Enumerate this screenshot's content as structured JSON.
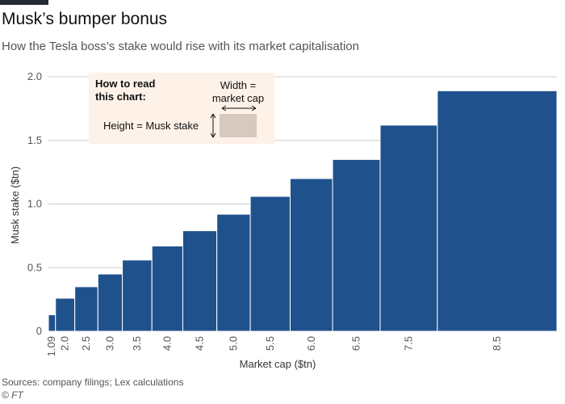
{
  "title": "Musk’s bumper bonus",
  "subtitle": "How the Tesla boss’s stake would rise with its market capitalisation",
  "legend": {
    "heading_line1": "How to read",
    "heading_line2": "this chart:",
    "width_line1": "Width =",
    "width_line2": "market cap",
    "height_text": "Height = Musk stake"
  },
  "source": "Sources: company filings; Lex calculations",
  "credit": "© FT",
  "colors": {
    "bar": "#1f528c",
    "grid": "#cccccc",
    "legend_bg": "#fdf1e8",
    "legend_swatch": "#d8c9bf",
    "text": "#262a33"
  },
  "chart_data": {
    "type": "bar",
    "xlabel": "Market cap ($tn)",
    "ylabel": "Musk stake ($tn)",
    "ylim": [
      0,
      2.0
    ],
    "xlim": [
      1.09,
      9.0
    ],
    "yticks": [
      0,
      0.5,
      1.0,
      1.5,
      2.0
    ],
    "ytick_labels": [
      "0",
      "0.5",
      "1.0",
      "1.5",
      "2.0"
    ],
    "xticks": [
      {
        "value": 1.09,
        "label": "1.09"
      },
      {
        "value": 2.0,
        "label": "2.0"
      },
      {
        "value": 2.5,
        "label": "2.5"
      },
      {
        "value": 3.0,
        "label": "3.0"
      },
      {
        "value": 3.5,
        "label": "3.5"
      },
      {
        "value": 4.0,
        "label": "4.0"
      },
      {
        "value": 4.5,
        "label": "4.5"
      },
      {
        "value": 5.0,
        "label": "5.0"
      },
      {
        "value": 5.5,
        "label": "5.5"
      },
      {
        "value": 6.0,
        "label": "6.0"
      },
      {
        "value": 6.5,
        "label": "6.5"
      },
      {
        "value": 7.5,
        "label": "7.5"
      },
      {
        "value": 8.5,
        "label": "8.5"
      }
    ],
    "bars": [
      {
        "x0": 1.09,
        "x1": 1.2,
        "value": 0.13
      },
      {
        "x0": 1.2,
        "x1": 1.5,
        "value": 0.26
      },
      {
        "x0": 1.5,
        "x1": 1.86,
        "value": 0.35
      },
      {
        "x0": 1.86,
        "x1": 2.24,
        "value": 0.45
      },
      {
        "x0": 2.24,
        "x1": 2.7,
        "value": 0.56
      },
      {
        "x0": 2.7,
        "x1": 3.18,
        "value": 0.67
      },
      {
        "x0": 3.18,
        "x1": 3.71,
        "value": 0.79
      },
      {
        "x0": 3.71,
        "x1": 4.23,
        "value": 0.92
      },
      {
        "x0": 4.23,
        "x1": 4.85,
        "value": 1.06
      },
      {
        "x0": 4.85,
        "x1": 5.51,
        "value": 1.2
      },
      {
        "x0": 5.51,
        "x1": 6.25,
        "value": 1.35
      },
      {
        "x0": 6.25,
        "x1": 7.14,
        "value": 1.62
      },
      {
        "x0": 7.14,
        "x1": 9.0,
        "value": 1.89
      }
    ],
    "grid": true
  }
}
